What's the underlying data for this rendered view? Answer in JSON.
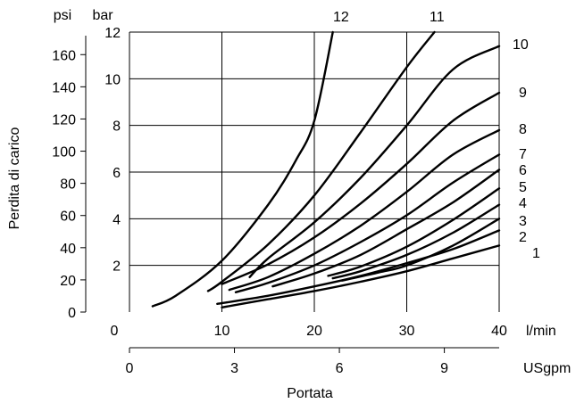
{
  "chart_data": {
    "type": "line",
    "title": "",
    "xlabel": "Portata",
    "ylabel": "Perdita di carico",
    "x_primary": {
      "unit": "l/min",
      "ticks": [
        0,
        10,
        20,
        30,
        40
      ],
      "range": [
        0,
        40
      ],
      "grid": true
    },
    "x_secondary": {
      "unit": "USgpm",
      "ticks": [
        0,
        3,
        6,
        9
      ],
      "range": [
        0,
        10.567
      ]
    },
    "y_primary": {
      "unit": "bar",
      "ticks": [
        2,
        4,
        6,
        8,
        10,
        12
      ],
      "range": [
        0,
        12
      ],
      "grid": true
    },
    "y_secondary": {
      "unit": "psi",
      "ticks": [
        0,
        20,
        40,
        60,
        80,
        100,
        120,
        140,
        160
      ],
      "range": [
        0,
        174
      ]
    },
    "series": [
      {
        "name": "1",
        "x": [
          10,
          15,
          20,
          25,
          30,
          35,
          40
        ],
        "y": [
          0.2,
          0.55,
          0.9,
          1.3,
          1.75,
          2.3,
          2.85
        ]
      },
      {
        "name": "2",
        "x": [
          9.5,
          15,
          20,
          25,
          30,
          35,
          40
        ],
        "y": [
          0.35,
          0.7,
          1.1,
          1.55,
          2.1,
          2.7,
          3.5
        ]
      },
      {
        "name": "3",
        "x": [
          23,
          27,
          30,
          35,
          40
        ],
        "y": [
          1.35,
          1.7,
          2.0,
          2.85,
          4.0
        ]
      },
      {
        "name": "4",
        "x": [
          22,
          25,
          30,
          35,
          40
        ],
        "y": [
          1.45,
          1.75,
          2.45,
          3.4,
          4.6
        ]
      },
      {
        "name": "5",
        "x": [
          21.5,
          25,
          30,
          35,
          40
        ],
        "y": [
          1.55,
          1.95,
          2.8,
          3.95,
          5.3
        ]
      },
      {
        "name": "6",
        "x": [
          15.5,
          20,
          25,
          30,
          35,
          40
        ],
        "y": [
          1.1,
          1.65,
          2.45,
          3.55,
          4.7,
          6.1
        ]
      },
      {
        "name": "7",
        "x": [
          11.5,
          15,
          20,
          25,
          30,
          35,
          40
        ],
        "y": [
          0.85,
          1.25,
          2.0,
          3.0,
          4.15,
          5.55,
          6.75
        ]
      },
      {
        "name": "8",
        "x": [
          10.8,
          15,
          20,
          25,
          30,
          35,
          40
        ],
        "y": [
          0.95,
          1.5,
          2.5,
          3.7,
          5.15,
          6.75,
          7.8
        ]
      },
      {
        "name": "9",
        "x": [
          10,
          15,
          20,
          25,
          30,
          35,
          40
        ],
        "y": [
          1.2,
          2.05,
          3.2,
          4.65,
          6.35,
          8.2,
          9.4
        ]
      },
      {
        "name": "10",
        "x": [
          13,
          15,
          20,
          25,
          30,
          35,
          40
        ],
        "y": [
          1.5,
          2.3,
          3.85,
          5.75,
          8.0,
          10.4,
          11.4
        ]
      },
      {
        "name": "11",
        "x": [
          8.5,
          10,
          15,
          20,
          25,
          30,
          33
        ],
        "y": [
          0.9,
          1.3,
          2.9,
          5.0,
          7.7,
          10.5,
          12.0
        ]
      },
      {
        "name": "12",
        "x": [
          2.5,
          5,
          10,
          15,
          18,
          20,
          22
        ],
        "y": [
          0.25,
          0.7,
          2.2,
          4.6,
          6.5,
          8.2,
          12.0
        ]
      }
    ],
    "curve_labels": [
      "1",
      "2",
      "3",
      "4",
      "5",
      "6",
      "7",
      "8",
      "9",
      "10",
      "11",
      "12"
    ],
    "grid": true
  }
}
